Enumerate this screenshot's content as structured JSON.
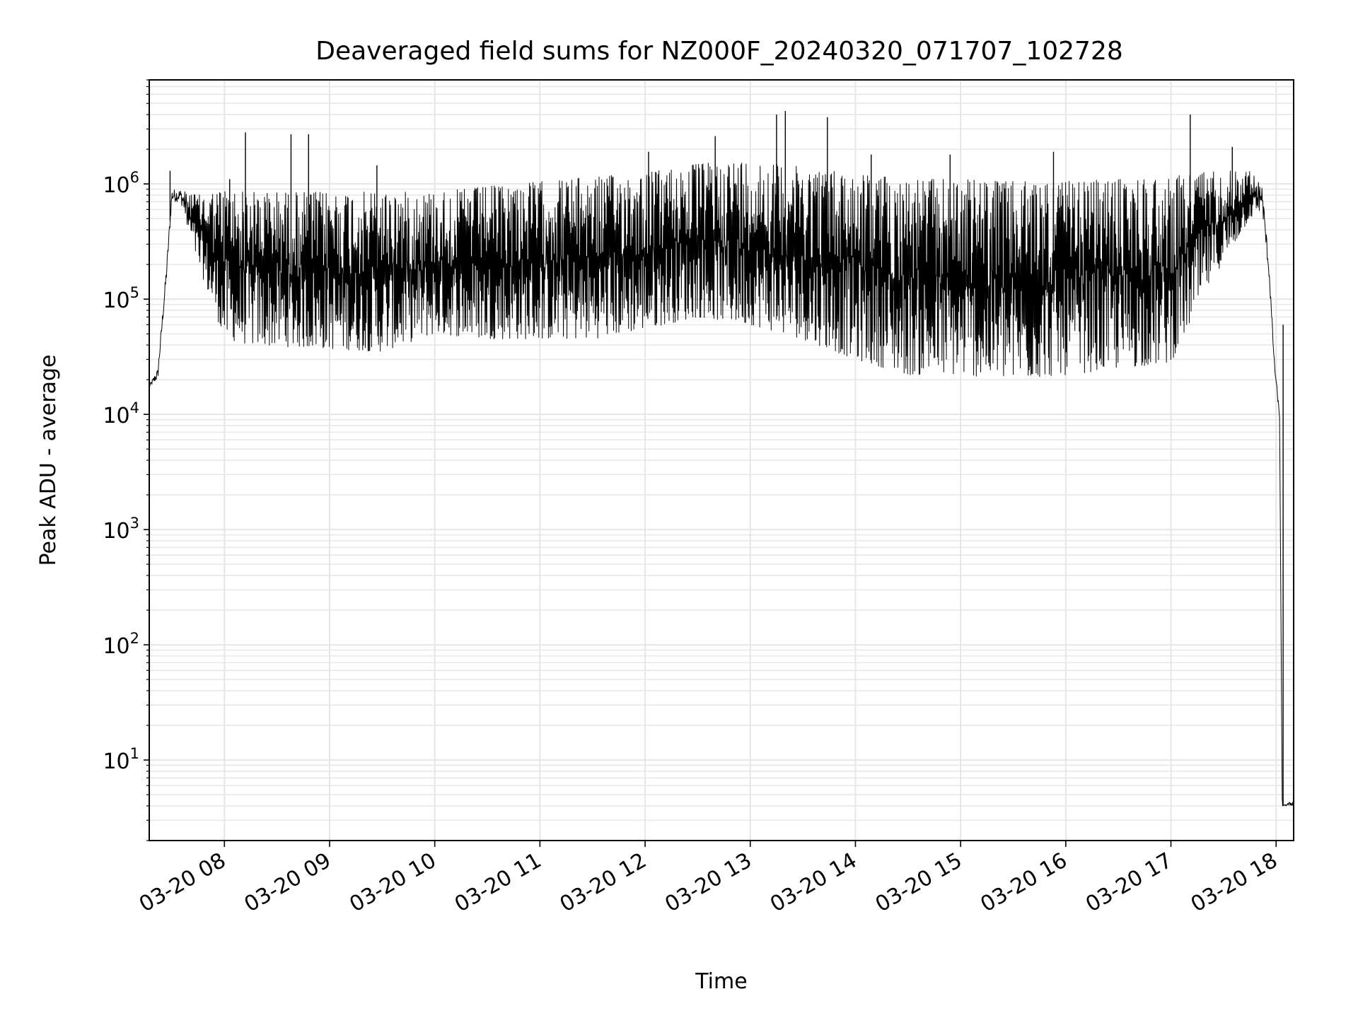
{
  "chart_data": {
    "type": "line",
    "title": "Deaveraged field sums for NZ000F_20240320_071707_102728",
    "xlabel": "Time",
    "ylabel": "Peak ADU - average",
    "yscale": "log",
    "ylim": [
      2,
      8000000
    ],
    "xlim": [
      "2024-03-20 07:17:07",
      "2024-03-20 18:10:00"
    ],
    "grid": true,
    "colors": {
      "line": "#000000",
      "grid": "#e6e6e6",
      "axes": "#000000"
    },
    "x_ticks": [
      {
        "t": "2024-03-20 08:00",
        "label": "03-20 08"
      },
      {
        "t": "2024-03-20 09:00",
        "label": "03-20 09"
      },
      {
        "t": "2024-03-20 10:00",
        "label": "03-20 10"
      },
      {
        "t": "2024-03-20 11:00",
        "label": "03-20 11"
      },
      {
        "t": "2024-03-20 12:00",
        "label": "03-20 12"
      },
      {
        "t": "2024-03-20 13:00",
        "label": "03-20 13"
      },
      {
        "t": "2024-03-20 14:00",
        "label": "03-20 14"
      },
      {
        "t": "2024-03-20 15:00",
        "label": "03-20 15"
      },
      {
        "t": "2024-03-20 16:00",
        "label": "03-20 16"
      },
      {
        "t": "2024-03-20 17:00",
        "label": "03-20 17"
      },
      {
        "t": "2024-03-20 18:00",
        "label": "03-20 18"
      }
    ],
    "y_ticks": [
      {
        "value": 10,
        "base": "10",
        "exp": "1"
      },
      {
        "value": 100,
        "base": "10",
        "exp": "2"
      },
      {
        "value": 1000,
        "base": "10",
        "exp": "3"
      },
      {
        "value": 10000,
        "base": "10",
        "exp": "4"
      },
      {
        "value": 100000,
        "base": "10",
        "exp": "5"
      },
      {
        "value": 1000000,
        "base": "10",
        "exp": "6"
      }
    ],
    "series": [
      {
        "line_width": 1,
        "envelope": [
          {
            "t": "2024-03-20 07:17:07",
            "upper": 18000,
            "lower": 17000
          },
          {
            "t": "2024-03-20 07:22:00",
            "upper": 25000,
            "lower": 20000
          },
          {
            "t": "2024-03-20 07:27:00",
            "upper": 200000,
            "lower": 150000
          },
          {
            "t": "2024-03-20 07:30:00",
            "upper": 900000,
            "lower": 700000
          },
          {
            "t": "2024-03-20 07:35:00",
            "upper": 900000,
            "lower": 700000
          },
          {
            "t": "2024-03-20 07:45:00",
            "upper": 800000,
            "lower": 200000
          },
          {
            "t": "2024-03-20 08:00:00",
            "upper": 900000,
            "lower": 45000
          },
          {
            "t": "2024-03-20 08:15:00",
            "upper": 850000,
            "lower": 40000
          },
          {
            "t": "2024-03-20 09:00:00",
            "upper": 850000,
            "lower": 37000
          },
          {
            "t": "2024-03-20 09:30:00",
            "upper": 850000,
            "lower": 35000
          },
          {
            "t": "2024-03-20 10:00:00",
            "upper": 850000,
            "lower": 50000
          },
          {
            "t": "2024-03-20 10:30:00",
            "upper": 950000,
            "lower": 45000
          },
          {
            "t": "2024-03-20 11:00:00",
            "upper": 1050000,
            "lower": 45000
          },
          {
            "t": "2024-03-20 11:30:00",
            "upper": 1150000,
            "lower": 45000
          },
          {
            "t": "2024-03-20 12:00:00",
            "upper": 1250000,
            "lower": 55000
          },
          {
            "t": "2024-03-20 12:30:00",
            "upper": 1500000,
            "lower": 70000
          },
          {
            "t": "2024-03-20 13:00:00",
            "upper": 1600000,
            "lower": 60000
          },
          {
            "t": "2024-03-20 13:30:00",
            "upper": 1400000,
            "lower": 45000
          },
          {
            "t": "2024-03-20 14:00:00",
            "upper": 1250000,
            "lower": 30000
          },
          {
            "t": "2024-03-20 14:30:00",
            "upper": 1100000,
            "lower": 22000
          },
          {
            "t": "2024-03-20 15:00:00",
            "upper": 1100000,
            "lower": 22000
          },
          {
            "t": "2024-03-20 15:30:00",
            "upper": 1050000,
            "lower": 20000
          },
          {
            "t": "2024-03-20 16:00:00",
            "upper": 1050000,
            "lower": 22000
          },
          {
            "t": "2024-03-20 16:30:00",
            "upper": 1100000,
            "lower": 25000
          },
          {
            "t": "2024-03-20 17:00:00",
            "upper": 1150000,
            "lower": 28000
          },
          {
            "t": "2024-03-20 17:20:00",
            "upper": 1300000,
            "lower": 120000
          },
          {
            "t": "2024-03-20 17:45:00",
            "upper": 1300000,
            "lower": 500000
          },
          {
            "t": "2024-03-20 17:52:00",
            "upper": 1000000,
            "lower": 600000
          },
          {
            "t": "2024-03-20 17:56:00",
            "upper": 200000,
            "lower": 150000
          },
          {
            "t": "2024-03-20 17:59:00",
            "upper": 30000,
            "lower": 25000
          },
          {
            "t": "2024-03-20 18:02:00",
            "upper": 10000,
            "lower": 9000
          },
          {
            "t": "2024-03-20 18:03:30",
            "upper": 4,
            "lower": 4
          },
          {
            "t": "2024-03-20 18:10:00",
            "upper": 4.5,
            "lower": 4
          }
        ],
        "spikes": [
          {
            "t": "2024-03-20 07:29:00",
            "value": 1300000
          },
          {
            "t": "2024-03-20 08:03:00",
            "value": 1100000
          },
          {
            "t": "2024-03-20 08:12:00",
            "value": 2800000
          },
          {
            "t": "2024-03-20 08:38:00",
            "value": 2700000
          },
          {
            "t": "2024-03-20 08:48:00",
            "value": 2700000
          },
          {
            "t": "2024-03-20 09:27:00",
            "value": 1450000
          },
          {
            "t": "2024-03-20 12:02:00",
            "value": 1900000
          },
          {
            "t": "2024-03-20 12:40:00",
            "value": 2600000
          },
          {
            "t": "2024-03-20 13:15:00",
            "value": 4000000
          },
          {
            "t": "2024-03-20 13:20:00",
            "value": 4300000
          },
          {
            "t": "2024-03-20 13:44:00",
            "value": 3800000
          },
          {
            "t": "2024-03-20 14:09:00",
            "value": 1800000
          },
          {
            "t": "2024-03-20 14:54:00",
            "value": 1800000
          },
          {
            "t": "2024-03-20 15:53:00",
            "value": 1900000
          },
          {
            "t": "2024-03-20 17:11:00",
            "value": 4000000
          },
          {
            "t": "2024-03-20 17:35:00",
            "value": 2100000
          },
          {
            "t": "2024-03-20 18:04:00",
            "value": 60000
          }
        ]
      }
    ]
  }
}
